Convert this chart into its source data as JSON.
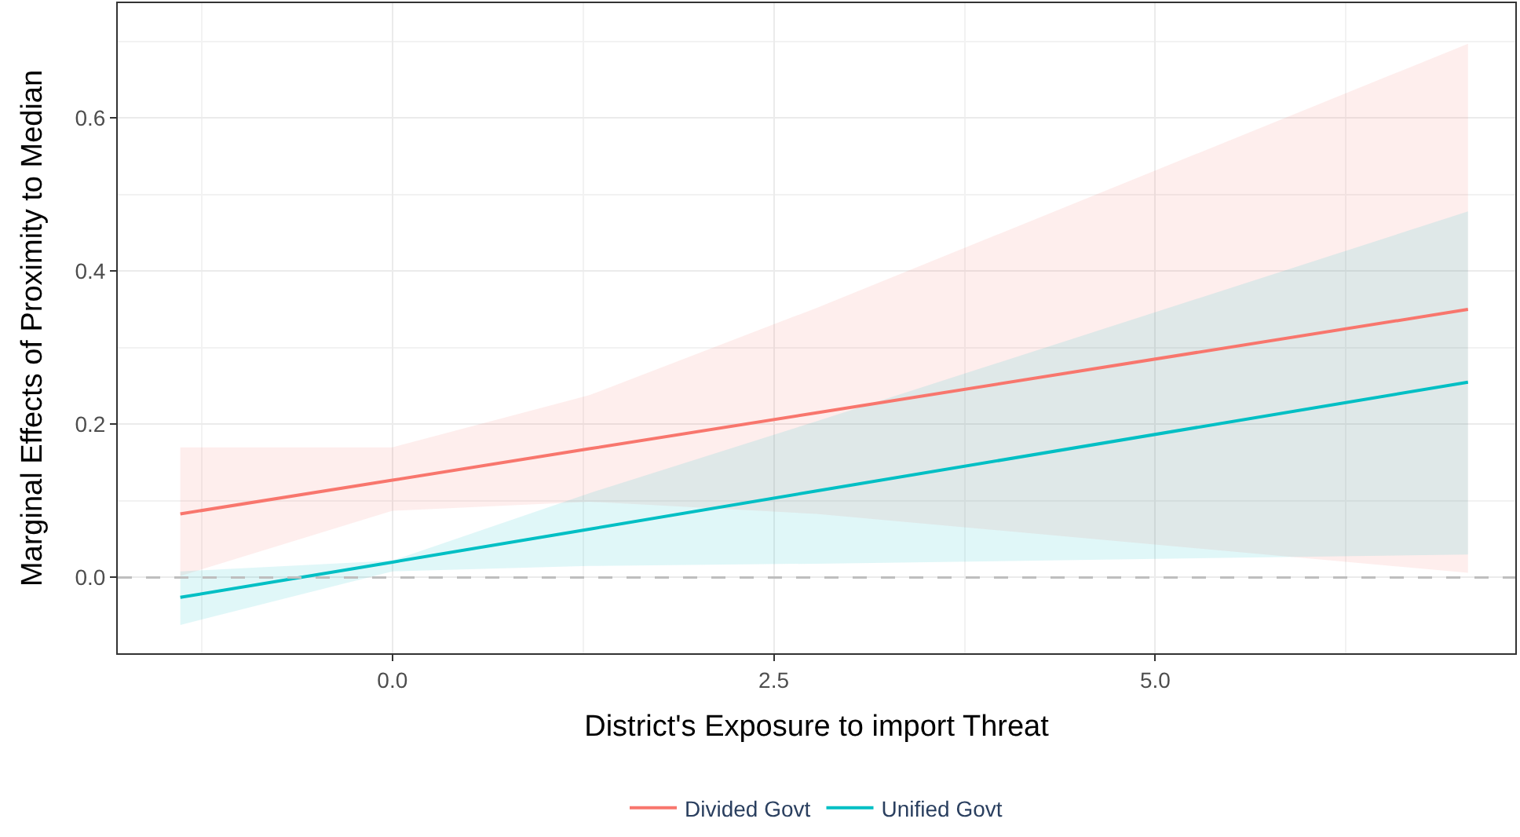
{
  "chart_data": {
    "type": "line",
    "xlabel": "District's Exposure to import Threat",
    "ylabel": "Marginal Effects of Proximity to Median",
    "x": [
      -1.39,
      0,
      1.29,
      2.78,
      7.05
    ],
    "series": [
      {
        "name": "Divided Govt",
        "color": "#f8766d",
        "values": [
          0.083,
          0.127,
          0.168,
          0.215,
          0.35
        ],
        "lower": [
          0.002,
          0.087,
          0.099,
          0.083,
          0.006
        ],
        "upper": [
          0.17,
          0.17,
          0.238,
          0.352,
          0.697
        ]
      },
      {
        "name": "Unified Govt",
        "color": "#00bfc4",
        "values": [
          -0.026,
          0.02,
          0.063,
          0.113,
          0.255
        ],
        "lower": [
          -0.062,
          0.008,
          0.015,
          0.018,
          0.03
        ],
        "upper": [
          0.008,
          0.022,
          0.11,
          0.204,
          0.478
        ]
      }
    ],
    "xlim": [
      -1.8,
      7.36
    ],
    "ylim": [
      -0.099,
      0.75
    ],
    "xticks": [
      {
        "value": -1.25,
        "label": null
      },
      {
        "value": 0,
        "label": "0.0"
      },
      {
        "value": 1.25,
        "label": null
      },
      {
        "value": 2.5,
        "label": "2.5"
      },
      {
        "value": 3.75,
        "label": null
      },
      {
        "value": 5,
        "label": "5.0"
      },
      {
        "value": 6.25,
        "label": null
      }
    ],
    "yticks": [
      {
        "value": 0,
        "label": "0.0"
      },
      {
        "value": 0.1,
        "label": null
      },
      {
        "value": 0.2,
        "label": "0.2"
      },
      {
        "value": 0.3,
        "label": null
      },
      {
        "value": 0.4,
        "label": "0.4"
      },
      {
        "value": 0.5,
        "label": null
      },
      {
        "value": 0.6,
        "label": "0.6"
      },
      {
        "value": 0.7,
        "label": null
      }
    ],
    "ref_lines": [
      {
        "axis": "y",
        "value": 0,
        "color": "#bebebe",
        "line_style": "dashed"
      }
    ],
    "grid": true,
    "legend": "bottom"
  }
}
